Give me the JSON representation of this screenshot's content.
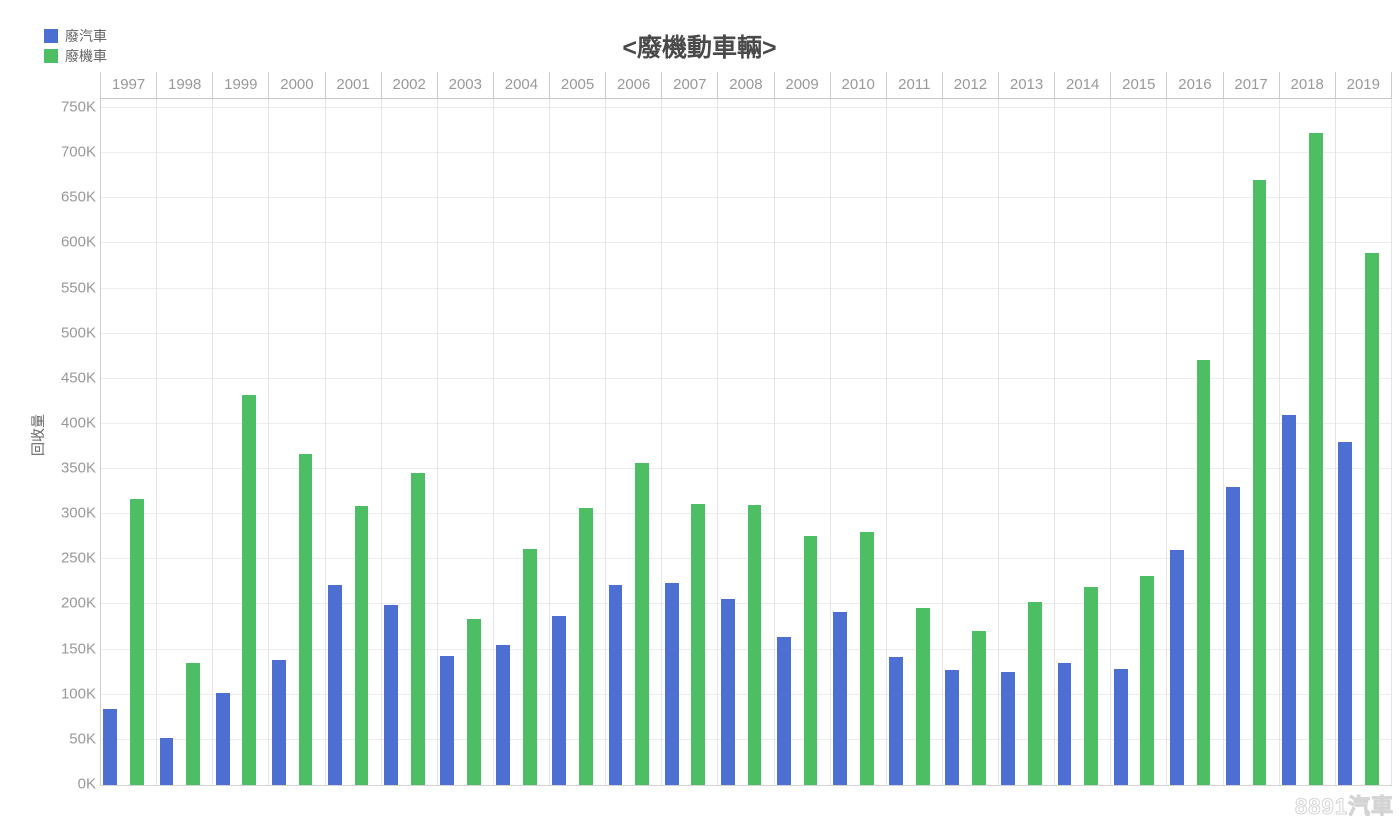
{
  "page": {
    "watermark": "8891汽車"
  },
  "legend": {
    "items": [
      {
        "label": "廢汽車",
        "color": "#4d6fd1"
      },
      {
        "label": "廢機車",
        "color": "#4dbe63"
      }
    ]
  },
  "chart_data": {
    "type": "bar",
    "title": "<廢機動車輛>",
    "xlabel": "",
    "ylabel": "回收量",
    "unit": "K",
    "categories": [
      1997,
      1998,
      1999,
      2000,
      2001,
      2002,
      2003,
      2004,
      2005,
      2006,
      2007,
      2008,
      2009,
      2010,
      2011,
      2012,
      2013,
      2014,
      2015,
      2016,
      2017,
      2018,
      2019
    ],
    "series": [
      {
        "name": "廢汽車",
        "color": "#4d6fd1",
        "values": [
          84,
          52,
          102,
          139,
          222,
          199,
          143,
          155,
          187,
          222,
          224,
          206,
          164,
          192,
          142,
          127,
          125,
          135,
          128,
          260,
          330,
          410,
          380
        ]
      },
      {
        "name": "廢機車",
        "color": "#4dbe63",
        "values": [
          317,
          135,
          432,
          367,
          309,
          346,
          184,
          261,
          307,
          357,
          311,
          310,
          276,
          280,
          196,
          171,
          203,
          219,
          232,
          471,
          670,
          722,
          589
        ]
      }
    ],
    "ylim": [
      0,
      750
    ],
    "ytick_step": 50,
    "ytick_labels": [
      "0K",
      "50K",
      "100K",
      "150K",
      "200K",
      "250K",
      "300K",
      "350K",
      "400K",
      "450K",
      "500K",
      "550K",
      "600K",
      "650K",
      "700K",
      "750K"
    ],
    "grid": true,
    "x_axis_position": "top",
    "legend_position": "top-left"
  }
}
